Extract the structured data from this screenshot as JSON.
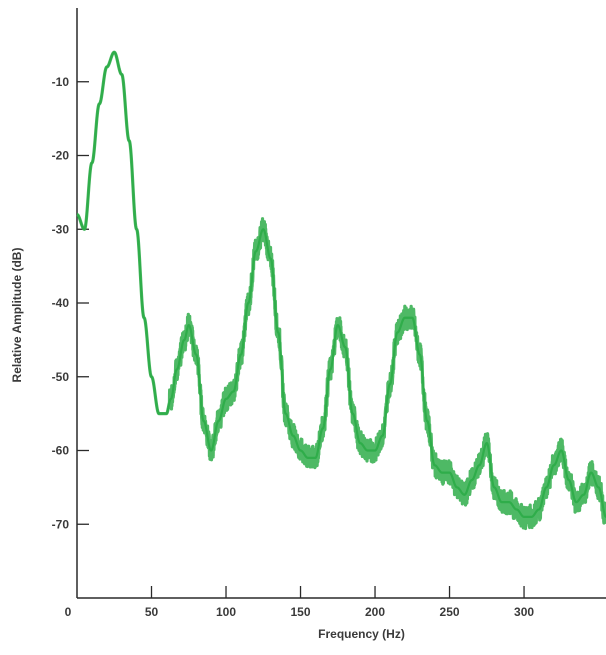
{
  "chart_data": {
    "type": "line",
    "title": "",
    "xlabel": "Frequency (Hz)",
    "ylabel": "Relative Amplitude (dB)",
    "xlim": [
      0,
      355
    ],
    "ylim": [
      -80,
      0
    ],
    "x_ticks": [
      0,
      50,
      100,
      150,
      200,
      250,
      300
    ],
    "x_tick_labels": [
      "0",
      "50",
      "100",
      "150",
      "200",
      "250",
      "300"
    ],
    "y_ticks": [
      -10,
      -20,
      -30,
      -40,
      -50,
      -60,
      -70
    ],
    "y_tick_labels": [
      "-10",
      "-20",
      "-30",
      "-40",
      "-50",
      "-60",
      "-70"
    ],
    "grid": false,
    "legend": "none",
    "line_color": "#2fad4a",
    "series": [
      {
        "name": "",
        "x": [
          0,
          5,
          10,
          15,
          20,
          25,
          30,
          35,
          40,
          45,
          50,
          55,
          60,
          63,
          67,
          72,
          75,
          80,
          85,
          90,
          95,
          100,
          105,
          110,
          115,
          120,
          125,
          130,
          135,
          140,
          145,
          150,
          155,
          160,
          165,
          170,
          175,
          180,
          185,
          190,
          195,
          200,
          205,
          210,
          215,
          220,
          225,
          230,
          235,
          240,
          245,
          250,
          255,
          260,
          265,
          270,
          275,
          280,
          285,
          290,
          295,
          300,
          305,
          310,
          315,
          320,
          325,
          330,
          335,
          340,
          345,
          350,
          355
        ],
        "y": [
          -28,
          -30,
          -21,
          -13,
          -8,
          -6,
          -9,
          -18,
          -30,
          -42,
          -50,
          -55,
          -55,
          -53,
          -49,
          -45,
          -43,
          -47,
          -56,
          -60,
          -56,
          -53,
          -52,
          -47,
          -40,
          -33,
          -30,
          -34,
          -44,
          -55,
          -58,
          -60,
          -61,
          -61,
          -57,
          -49,
          -43,
          -46,
          -55,
          -59,
          -60,
          -60,
          -58,
          -51,
          -44,
          -42,
          -42,
          -47,
          -56,
          -62,
          -63,
          -63,
          -65,
          -66,
          -64,
          -62,
          -59,
          -65,
          -67,
          -67,
          -68,
          -69,
          -69,
          -68,
          -65,
          -62,
          -60,
          -64,
          -67,
          -66,
          -63,
          -65,
          -69
        ]
      }
    ]
  }
}
